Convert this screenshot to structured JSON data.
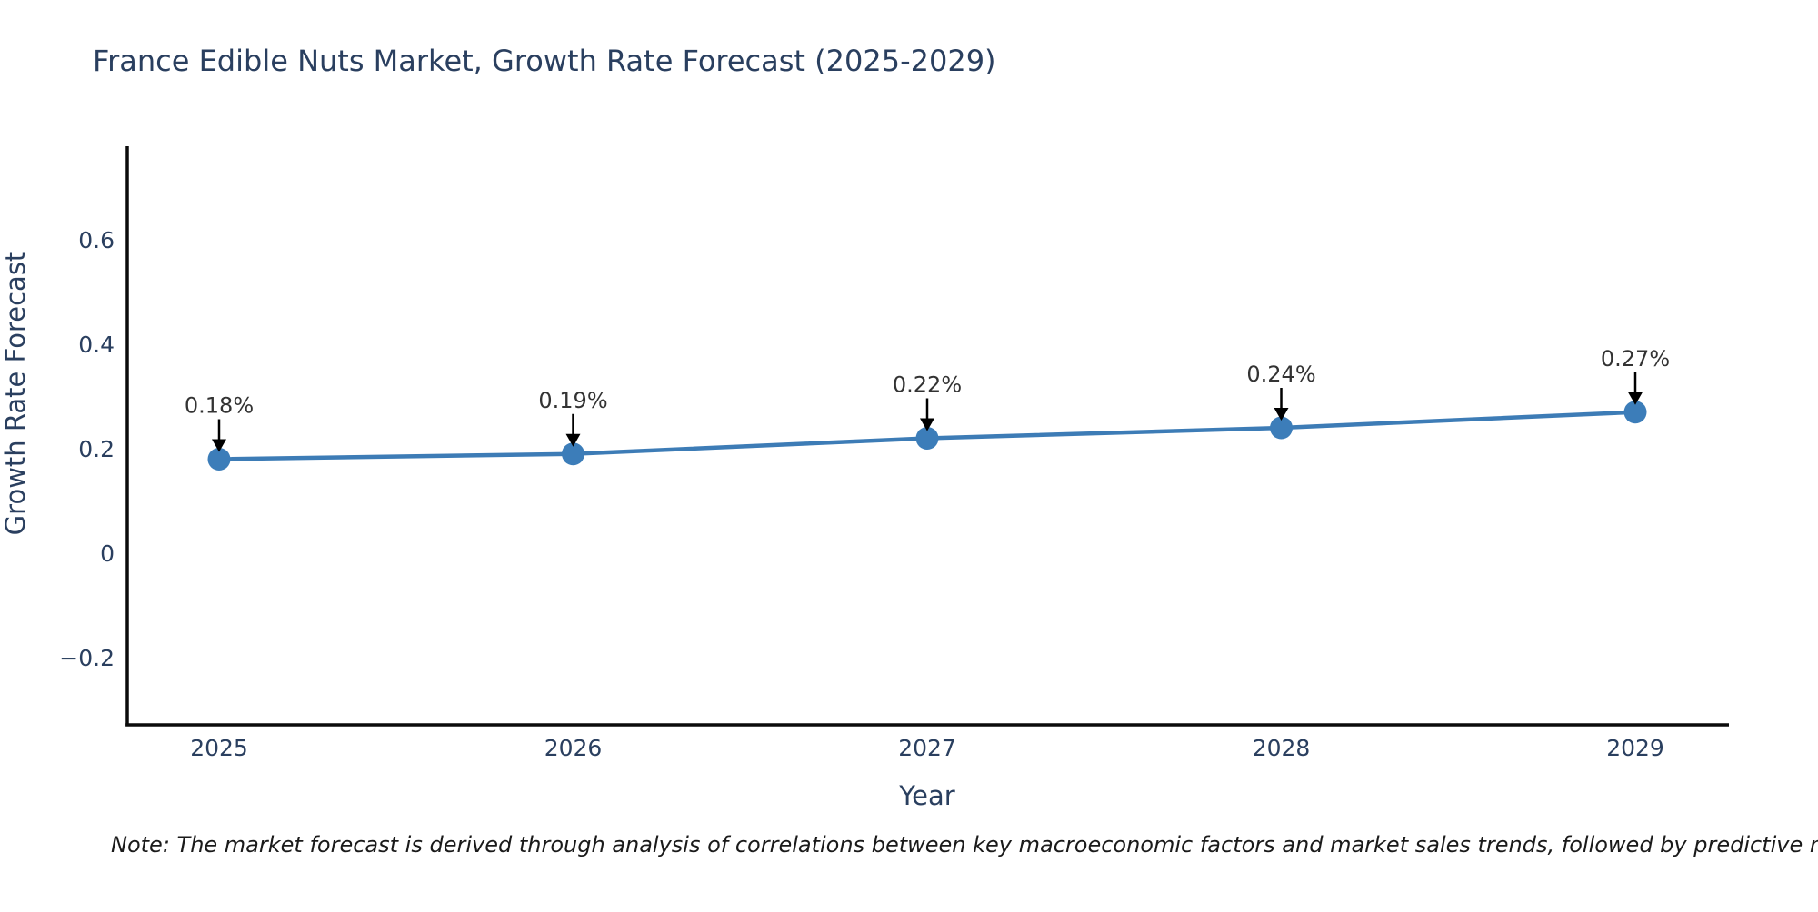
{
  "note": "Note: The market forecast is derived through analysis of correlations between key macroeconomic factors and market sales trends, followed by predictive modeling to project future sa",
  "chart_data": {
    "type": "line",
    "title": "France Edible Nuts Market, Growth Rate Forecast (2025-2029)",
    "xlabel": "Year",
    "ylabel": "Growth Rate Forecast",
    "x": [
      2025,
      2026,
      2027,
      2028,
      2029
    ],
    "x_tick_labels": [
      "2025",
      "2026",
      "2027",
      "2028",
      "2029"
    ],
    "values": [
      0.18,
      0.19,
      0.22,
      0.24,
      0.27
    ],
    "point_labels": [
      "0.18%",
      "0.19%",
      "0.22%",
      "0.24%",
      "0.27%"
    ],
    "yticks": [
      -0.2,
      0,
      0.2,
      0.4,
      0.6
    ],
    "ytick_labels": [
      "−0.2",
      "0",
      "0.2",
      "0.4",
      "0.6"
    ],
    "xlim": [
      2024.74,
      2029.26
    ],
    "ylim": [
      -0.33,
      0.78
    ],
    "grid": false,
    "legend": "none",
    "annotations": "black down-arrows from value labels to markers",
    "colors": {
      "line": "#3d7cb6",
      "marker": "#3c7db9",
      "axis": "#0b0b0b",
      "title_text": "#2a3f5f",
      "tick_text": "#2a3f5f",
      "point_label_text": "#333333",
      "background": "#ffffff"
    }
  }
}
